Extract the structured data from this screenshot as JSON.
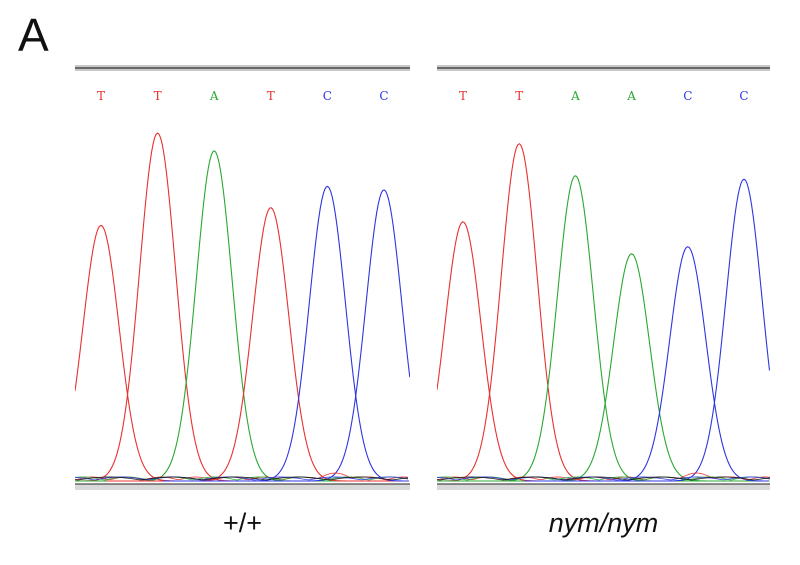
{
  "figure": {
    "panel_label": "A",
    "panels": [
      {
        "genotype": "+/+",
        "genotype_italic": false,
        "bases": [
          "T",
          "T",
          "A",
          "T",
          "C",
          "C"
        ],
        "peak_heights": [
          0.72,
          0.98,
          0.93,
          0.77,
          0.83,
          0.82
        ]
      },
      {
        "genotype": "nym/nym",
        "genotype_italic": true,
        "bases": [
          "T",
          "T",
          "A",
          "A",
          "C",
          "C"
        ],
        "peak_heights": [
          0.73,
          0.95,
          0.86,
          0.64,
          0.66,
          0.85
        ]
      }
    ],
    "base_colors": {
      "T": "#e8312f",
      "A": "#2aa832",
      "C": "#2d36e0",
      "G": "#111111"
    }
  }
}
